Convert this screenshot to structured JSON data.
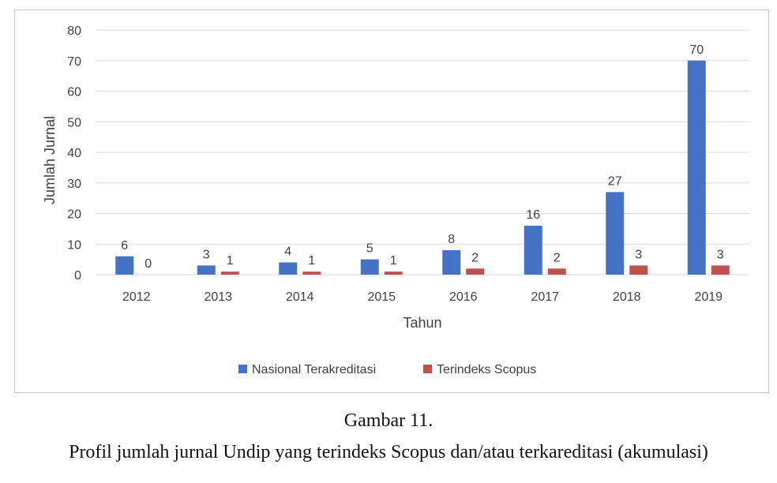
{
  "chart_data": {
    "type": "bar",
    "categories": [
      "2012",
      "2013",
      "2014",
      "2015",
      "2016",
      "2017",
      "2018",
      "2019"
    ],
    "series": [
      {
        "name": "Nasional Terakreditasi",
        "color": "#4472C4",
        "values": [
          6,
          3,
          4,
          5,
          8,
          16,
          27,
          70
        ],
        "labels": [
          "6",
          "3",
          "4",
          "5",
          "8",
          "16",
          "27",
          "70"
        ]
      },
      {
        "name": "Terindeks Scopus",
        "color": "#C0504D",
        "values": [
          0,
          1,
          1,
          1,
          2,
          2,
          3,
          3
        ],
        "labels": [
          "0",
          "1",
          "1",
          "1",
          "2",
          "2",
          "3",
          "3"
        ]
      }
    ],
    "xlabel": "Tahun",
    "ylabel": "Jumlah Jurnal",
    "ylim": [
      0,
      80
    ],
    "yticks": [
      "0",
      "10",
      "20",
      "30",
      "40",
      "50",
      "60",
      "70",
      "80"
    ],
    "grid": true,
    "legend_position": "bottom"
  },
  "caption": {
    "line1": "Gambar 11.",
    "line2": "Profil jumlah jurnal Undip yang terindeks Scopus dan/atau terkareditasi (akumulasi)"
  }
}
